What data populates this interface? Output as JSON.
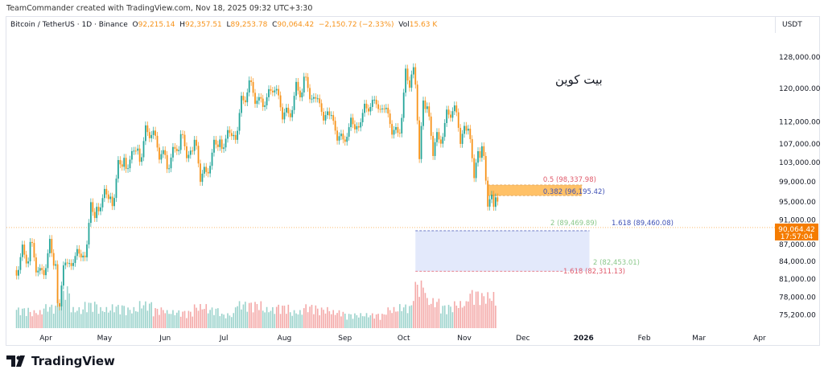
{
  "header": {
    "credit": "TeamCommander created with TradingView.com, Nov 18, 2025 09:32 UTC+3:30"
  },
  "legend": {
    "symbol": "Bitcoin / TetherUS · 1D · Binance",
    "o_label": "O",
    "o": "92,215.14",
    "h_label": "H",
    "h": "92,357.51",
    "l_label": "L",
    "l": "89,253.78",
    "c_label": "C",
    "c": "90,064.42",
    "change": "−2,150.72 (−2.33%)",
    "vol_label": "Vol",
    "vol": "15.63 K"
  },
  "currency": "USDT",
  "annotation_text": "بیت کوین",
  "price_tag": {
    "price": "90,064.42",
    "countdown": "17:57:04"
  },
  "brand": "TradingView",
  "colors": {
    "up": "#26a69a",
    "down": "#f7931a",
    "vol_up": "#9bd3cc",
    "vol_down": "#f4a9a8",
    "price_tag": "#f57c00",
    "fib_box": "#ffb74d",
    "target_box": "#e3e9fb"
  },
  "chart_data": {
    "type": "candlestick",
    "y_scale": "log",
    "ylim": [
      73500,
      132000
    ],
    "y_ticks": [
      128000,
      120000,
      112000,
      107000,
      103000,
      99000,
      95000,
      91000,
      87000,
      84000,
      81000,
      78000,
      75200
    ],
    "y_tick_labels": [
      "128,000.00",
      "120,000.00",
      "112,000.00",
      "107,000.00",
      "103,000.00",
      "99,000.00",
      "95,000.00",
      "91,000.00",
      "87,000.00",
      "84,000.00",
      "81,000.00",
      "78,000.00",
      "75,200.00"
    ],
    "x_ticks": [
      {
        "date": "2025-04-01",
        "label": "Apr"
      },
      {
        "date": "2025-05-01",
        "label": "May"
      },
      {
        "date": "2025-06-01",
        "label": "Jun"
      },
      {
        "date": "2025-07-01",
        "label": "Jul"
      },
      {
        "date": "2025-08-01",
        "label": "Aug"
      },
      {
        "date": "2025-09-01",
        "label": "Sep"
      },
      {
        "date": "2025-10-01",
        "label": "Oct"
      },
      {
        "date": "2025-11-01",
        "label": "Nov"
      },
      {
        "date": "2025-12-01",
        "label": "Dec"
      },
      {
        "date": "2026-01-01",
        "label": "2026",
        "bold": true
      },
      {
        "date": "2026-02-01",
        "label": "Feb"
      },
      {
        "date": "2026-03-01",
        "label": "Mar"
      },
      {
        "date": "2026-04-01",
        "label": "Apr"
      }
    ],
    "candles": [
      {
        "date": "2025-03-17",
        "o": 82500,
        "h": 87400,
        "l": 81200,
        "c": 84000,
        "v": 7
      },
      {
        "date": "2025-03-24",
        "o": 84000,
        "h": 88800,
        "l": 81600,
        "c": 82500,
        "v": 6
      },
      {
        "date": "2025-03-31",
        "o": 82500,
        "h": 88500,
        "l": 81300,
        "c": 83500,
        "v": 8
      },
      {
        "date": "2025-04-07",
        "o": 83500,
        "h": 84000,
        "l": 74500,
        "c": 83700,
        "v": 14
      },
      {
        "date": "2025-04-14",
        "o": 83700,
        "h": 86400,
        "l": 83000,
        "c": 85000,
        "v": 7
      },
      {
        "date": "2025-04-21",
        "o": 85000,
        "h": 95700,
        "l": 84600,
        "c": 94000,
        "v": 9
      },
      {
        "date": "2025-04-28",
        "o": 94000,
        "h": 97900,
        "l": 92800,
        "c": 96000,
        "v": 7
      },
      {
        "date": "2025-05-05",
        "o": 96000,
        "h": 104300,
        "l": 93400,
        "c": 104000,
        "v": 8
      },
      {
        "date": "2025-05-12",
        "o": 104000,
        "h": 105800,
        "l": 100700,
        "c": 106000,
        "v": 7
      },
      {
        "date": "2025-05-19",
        "o": 106000,
        "h": 111900,
        "l": 102000,
        "c": 109000,
        "v": 9
      },
      {
        "date": "2025-05-26",
        "o": 109000,
        "h": 110400,
        "l": 103100,
        "c": 104600,
        "v": 7
      },
      {
        "date": "2025-06-02",
        "o": 104600,
        "h": 106800,
        "l": 100400,
        "c": 105700,
        "v": 6
      },
      {
        "date": "2025-06-09",
        "o": 105700,
        "h": 110600,
        "l": 103400,
        "c": 105500,
        "v": 6
      },
      {
        "date": "2025-06-16",
        "o": 105500,
        "h": 108900,
        "l": 98200,
        "c": 101000,
        "v": 8
      },
      {
        "date": "2025-06-23",
        "o": 101000,
        "h": 108500,
        "l": 100600,
        "c": 108000,
        "v": 7
      },
      {
        "date": "2025-06-30",
        "o": 108000,
        "h": 110500,
        "l": 105100,
        "c": 109000,
        "v": 5
      },
      {
        "date": "2025-07-07",
        "o": 109000,
        "h": 119000,
        "l": 107500,
        "c": 119000,
        "v": 9
      },
      {
        "date": "2025-07-14",
        "o": 119000,
        "h": 123200,
        "l": 115700,
        "c": 117500,
        "v": 9
      },
      {
        "date": "2025-07-21",
        "o": 117500,
        "h": 120200,
        "l": 114700,
        "c": 119500,
        "v": 7
      },
      {
        "date": "2025-07-28",
        "o": 119500,
        "h": 120000,
        "l": 112000,
        "c": 114000,
        "v": 8
      },
      {
        "date": "2025-08-04",
        "o": 114000,
        "h": 122300,
        "l": 112700,
        "c": 119000,
        "v": 6
      },
      {
        "date": "2025-08-11",
        "o": 119000,
        "h": 124500,
        "l": 116800,
        "c": 117500,
        "v": 8
      },
      {
        "date": "2025-08-18",
        "o": 117500,
        "h": 117600,
        "l": 111900,
        "c": 113500,
        "v": 7
      },
      {
        "date": "2025-08-25",
        "o": 113500,
        "h": 113600,
        "l": 107300,
        "c": 108000,
        "v": 6
      },
      {
        "date": "2025-09-01",
        "o": 108000,
        "h": 113400,
        "l": 107300,
        "c": 111000,
        "v": 5
      },
      {
        "date": "2025-09-08",
        "o": 111000,
        "h": 116700,
        "l": 110600,
        "c": 115500,
        "v": 5
      },
      {
        "date": "2025-09-15",
        "o": 115500,
        "h": 117900,
        "l": 114800,
        "c": 115000,
        "v": 5
      },
      {
        "date": "2025-09-22",
        "o": 115000,
        "h": 115400,
        "l": 108600,
        "c": 109500,
        "v": 7
      },
      {
        "date": "2025-09-29",
        "o": 109500,
        "h": 126200,
        "l": 109300,
        "c": 123500,
        "v": 8
      },
      {
        "date": "2025-10-06",
        "o": 123500,
        "h": 126100,
        "l": 102000,
        "c": 115000,
        "v": 16
      },
      {
        "date": "2025-10-13",
        "o": 115000,
        "h": 115900,
        "l": 103500,
        "c": 108000,
        "v": 10
      },
      {
        "date": "2025-10-20",
        "o": 108000,
        "h": 115500,
        "l": 106700,
        "c": 114500,
        "v": 8
      },
      {
        "date": "2025-10-27",
        "o": 114500,
        "h": 116400,
        "l": 106300,
        "c": 110000,
        "v": 9
      },
      {
        "date": "2025-11-03",
        "o": 110000,
        "h": 110600,
        "l": 98900,
        "c": 104000,
        "v": 13
      },
      {
        "date": "2025-11-10",
        "o": 104000,
        "h": 107500,
        "l": 93000,
        "c": 94000,
        "v": 12
      },
      {
        "date": "2025-11-17",
        "o": 94000,
        "h": 96600,
        "l": 89250,
        "c": 90064.42,
        "v": 10
      }
    ],
    "last_price": 90064.42,
    "drawings": {
      "fib_zone": {
        "from_date": "2025-11-13",
        "to_date": "2025-12-31",
        "top": 98337.98,
        "bottom": 96195.42,
        "labels": [
          "0.5 (98,337.98)",
          "0.382 (96,195.42)"
        ]
      },
      "target_zone": {
        "from_date": "2025-10-07",
        "to_date": "2026-01-04",
        "top": 89469.89,
        "bottom": 82311.13,
        "labels_top": [
          "2 (89,469.89)",
          "1.618 (89,460.08)"
        ],
        "labels_bottom": [
          "2 (82,453.01)",
          "1.618 (82,311.13)"
        ]
      }
    }
  }
}
